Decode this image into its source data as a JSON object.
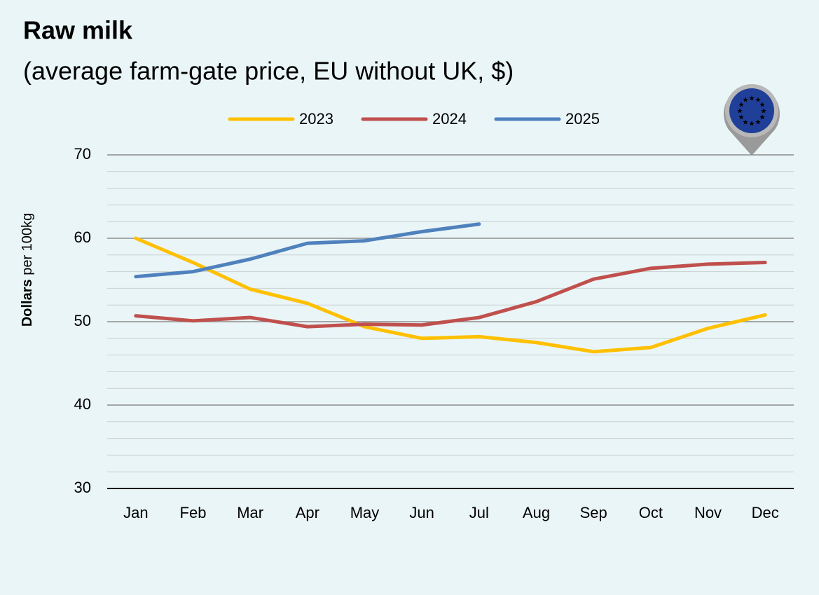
{
  "chart_data": {
    "type": "line",
    "title": "Raw milk",
    "subtitle": "(average farm-gate price, EU without UK, $)",
    "ylabel": {
      "bold": "Dollars",
      "rest": "per 100kg"
    },
    "categories": [
      "Jan",
      "Feb",
      "Mar",
      "Apr",
      "May",
      "Jun",
      "Jul",
      "Aug",
      "Sep",
      "Oct",
      "Nov",
      "Dec"
    ],
    "series": [
      {
        "name": "2023",
        "color": "#ffc000",
        "values": [
          60.0,
          57.1,
          53.9,
          52.2,
          49.4,
          48.0,
          48.2,
          47.5,
          46.4,
          46.9,
          49.2,
          50.8
        ]
      },
      {
        "name": "2024",
        "color": "#c0504d",
        "values": [
          50.7,
          50.1,
          50.5,
          49.4,
          49.7,
          49.6,
          50.5,
          52.4,
          55.1,
          56.4,
          56.9,
          57.1
        ]
      },
      {
        "name": "2025",
        "color": "#4f81bd",
        "values": [
          55.4,
          56.0,
          57.5,
          59.4,
          59.7,
          60.8,
          61.7,
          null,
          null,
          null,
          null,
          null
        ]
      }
    ],
    "ylim": [
      30,
      70
    ],
    "yticks": [
      30,
      40,
      50,
      60,
      70
    ],
    "yminor": [
      32,
      34,
      36,
      38,
      42,
      44,
      46,
      48,
      52,
      54,
      56,
      58,
      62,
      64,
      66,
      68
    ],
    "grid": true,
    "legend": "top"
  }
}
